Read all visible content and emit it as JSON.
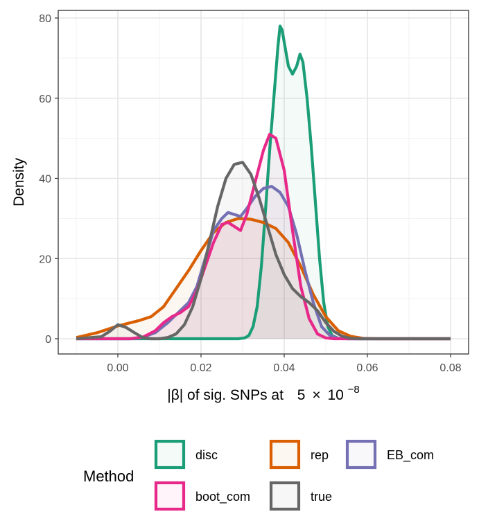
{
  "chart_data": {
    "type": "area",
    "title": "",
    "xlabel_parts": {
      "prefix": "|β| of sig. SNPs at",
      "coef": "5",
      "times": "×",
      "base": "10",
      "exponent": "−8"
    },
    "ylabel": "Density",
    "xlim": [
      -0.01,
      0.08
    ],
    "ylim": [
      0,
      80
    ],
    "x_ticks": [
      0.0,
      0.02,
      0.04,
      0.06,
      0.08
    ],
    "x_tick_labels": [
      "0.00",
      "0.02",
      "0.04",
      "0.06",
      "0.08"
    ],
    "y_ticks": [
      0,
      20,
      40,
      60,
      80
    ],
    "y_tick_labels": [
      "0",
      "20",
      "40",
      "60",
      "80"
    ],
    "grid": true,
    "legend": {
      "title": "Method",
      "position": "bottom"
    },
    "series": [
      {
        "name": "disc",
        "color": "#1b9e77",
        "points": [
          [
            -0.01,
            0
          ],
          [
            0.025,
            0
          ],
          [
            0.029,
            0
          ],
          [
            0.0305,
            0.2
          ],
          [
            0.0315,
            0.8
          ],
          [
            0.0325,
            3
          ],
          [
            0.0335,
            8
          ],
          [
            0.0345,
            18
          ],
          [
            0.0355,
            32
          ],
          [
            0.0365,
            47
          ],
          [
            0.0375,
            60
          ],
          [
            0.0385,
            73
          ],
          [
            0.039,
            78
          ],
          [
            0.0395,
            77
          ],
          [
            0.04,
            74
          ],
          [
            0.041,
            68
          ],
          [
            0.042,
            66
          ],
          [
            0.043,
            68
          ],
          [
            0.0438,
            71
          ],
          [
            0.0445,
            69
          ],
          [
            0.0455,
            60
          ],
          [
            0.0465,
            48
          ],
          [
            0.0475,
            34
          ],
          [
            0.0485,
            20
          ],
          [
            0.0495,
            9
          ],
          [
            0.0505,
            3
          ],
          [
            0.0515,
            0.8
          ],
          [
            0.053,
            0.1
          ],
          [
            0.055,
            0
          ],
          [
            0.08,
            0
          ]
        ]
      },
      {
        "name": "rep",
        "color": "#d95f02",
        "points": [
          [
            -0.01,
            0.3
          ],
          [
            -0.005,
            1.5
          ],
          [
            0,
            3.2
          ],
          [
            0.005,
            4.5
          ],
          [
            0.008,
            5.5
          ],
          [
            0.011,
            8
          ],
          [
            0.014,
            12.5
          ],
          [
            0.017,
            17
          ],
          [
            0.02,
            22
          ],
          [
            0.023,
            26.5
          ],
          [
            0.026,
            29
          ],
          [
            0.029,
            30
          ],
          [
            0.032,
            29.8
          ],
          [
            0.035,
            29
          ],
          [
            0.038,
            27.5
          ],
          [
            0.041,
            24
          ],
          [
            0.044,
            18
          ],
          [
            0.047,
            11
          ],
          [
            0.05,
            5.5
          ],
          [
            0.053,
            2
          ],
          [
            0.056,
            0.6
          ],
          [
            0.059,
            0.1
          ],
          [
            0.062,
            0
          ],
          [
            0.08,
            0
          ]
        ]
      },
      {
        "name": "EB_com",
        "color": "#7570b3",
        "points": [
          [
            -0.01,
            0
          ],
          [
            0.003,
            0
          ],
          [
            0.006,
            0.4
          ],
          [
            0.009,
            1.5
          ],
          [
            0.012,
            4
          ],
          [
            0.015,
            7
          ],
          [
            0.017,
            9
          ],
          [
            0.019,
            13
          ],
          [
            0.021,
            20
          ],
          [
            0.023,
            27
          ],
          [
            0.025,
            30
          ],
          [
            0.0265,
            31.5
          ],
          [
            0.028,
            31
          ],
          [
            0.0295,
            30.5
          ],
          [
            0.031,
            32.5
          ],
          [
            0.033,
            35.5
          ],
          [
            0.035,
            37.5
          ],
          [
            0.037,
            38
          ],
          [
            0.039,
            36.5
          ],
          [
            0.041,
            33
          ],
          [
            0.043,
            26
          ],
          [
            0.045,
            17
          ],
          [
            0.047,
            9
          ],
          [
            0.049,
            3
          ],
          [
            0.051,
            0.8
          ],
          [
            0.053,
            0.1
          ],
          [
            0.055,
            0
          ],
          [
            0.08,
            0
          ]
        ]
      },
      {
        "name": "boot_com",
        "color": "#e7298a",
        "points": [
          [
            -0.01,
            0
          ],
          [
            0.003,
            0
          ],
          [
            0.006,
            0.4
          ],
          [
            0.009,
            2
          ],
          [
            0.011,
            4
          ],
          [
            0.013,
            5.5
          ],
          [
            0.015,
            6.5
          ],
          [
            0.017,
            8
          ],
          [
            0.019,
            12
          ],
          [
            0.021,
            18
          ],
          [
            0.023,
            24
          ],
          [
            0.025,
            28.5
          ],
          [
            0.0265,
            29
          ],
          [
            0.028,
            28
          ],
          [
            0.0295,
            27
          ],
          [
            0.031,
            31
          ],
          [
            0.033,
            39
          ],
          [
            0.035,
            47
          ],
          [
            0.0365,
            51
          ],
          [
            0.038,
            50
          ],
          [
            0.04,
            42
          ],
          [
            0.042,
            27
          ],
          [
            0.044,
            13
          ],
          [
            0.046,
            5
          ],
          [
            0.048,
            1.2
          ],
          [
            0.05,
            0.2
          ],
          [
            0.052,
            0
          ],
          [
            0.08,
            0
          ]
        ]
      },
      {
        "name": "true",
        "color": "#666666",
        "points": [
          [
            -0.01,
            0
          ],
          [
            -0.004,
            0.5
          ],
          [
            -0.002,
            1.8
          ],
          [
            0,
            3.5
          ],
          [
            0.002,
            2.8
          ],
          [
            0.004,
            1.5
          ],
          [
            0.006,
            0.3
          ],
          [
            0.008,
            0
          ],
          [
            0.01,
            0
          ],
          [
            0.012,
            0.3
          ],
          [
            0.014,
            1.2
          ],
          [
            0.016,
            3.5
          ],
          [
            0.018,
            8
          ],
          [
            0.02,
            15
          ],
          [
            0.022,
            24
          ],
          [
            0.024,
            33
          ],
          [
            0.026,
            40
          ],
          [
            0.028,
            43.5
          ],
          [
            0.03,
            44
          ],
          [
            0.032,
            41
          ],
          [
            0.034,
            35
          ],
          [
            0.036,
            28
          ],
          [
            0.038,
            21
          ],
          [
            0.04,
            16
          ],
          [
            0.042,
            12.5
          ],
          [
            0.044,
            10.5
          ],
          [
            0.046,
            9
          ],
          [
            0.048,
            7
          ],
          [
            0.05,
            4
          ],
          [
            0.052,
            1.8
          ],
          [
            0.054,
            0.6
          ],
          [
            0.056,
            0.1
          ],
          [
            0.058,
            0
          ],
          [
            0.08,
            0
          ]
        ]
      }
    ]
  }
}
